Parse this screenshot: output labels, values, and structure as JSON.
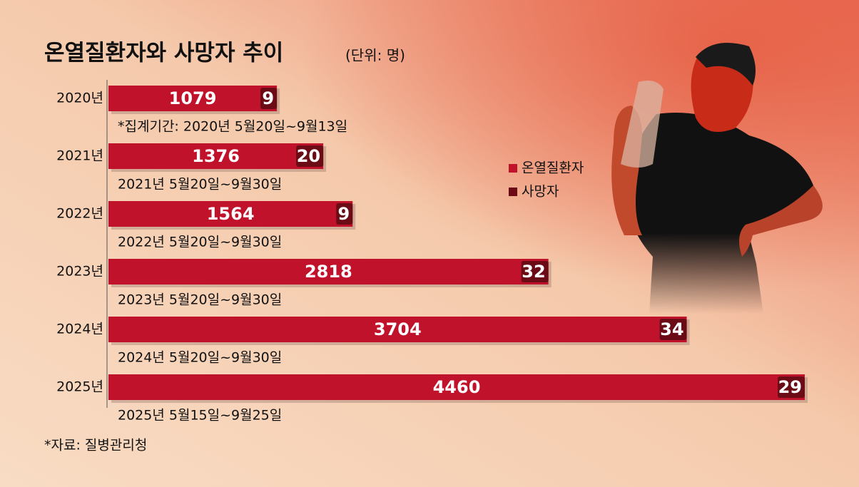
{
  "chart_data": {
    "type": "bar",
    "orientation": "horizontal",
    "title": "온열질환자와 사망자 추이",
    "unit": "(단위: 명)",
    "categories": [
      "2020년",
      "2021년",
      "2022년",
      "2023년",
      "2024년",
      "2025년"
    ],
    "periods": [
      "*집계기간: 2020년 5월20일~9월13일",
      "2021년 5월20일~9월30일",
      "2022년 5월20일~9월30일",
      "2023년 5월20일~9월30일",
      "2024년 5월20일~9월30일",
      "2025년 5월15일~9월25일"
    ],
    "series": [
      {
        "name": "온열질환자",
        "color": "#c0132b",
        "values": [
          1079,
          1376,
          1564,
          2818,
          3704,
          4460
        ]
      },
      {
        "name": "사망자",
        "color": "#6a0b16",
        "values": [
          9,
          20,
          9,
          32,
          34,
          29
        ]
      }
    ],
    "source": "*자료: 질병관리청"
  }
}
